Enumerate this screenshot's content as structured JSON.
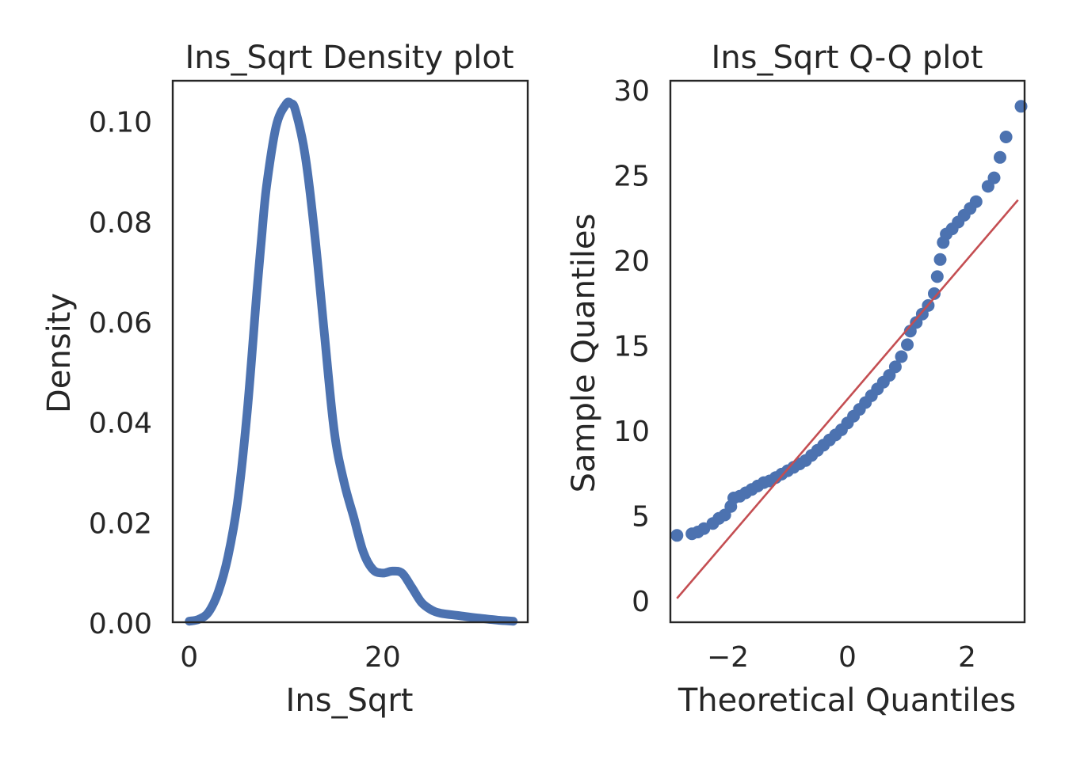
{
  "chart_data": [
    {
      "type": "line",
      "title": "Ins_Sqrt Density plot",
      "xlabel": "Ins_Sqrt",
      "ylabel": "Density",
      "xlim": [
        -1.7,
        35.0
      ],
      "ylim": [
        0.0,
        0.108
      ],
      "xticks": [
        0,
        20
      ],
      "xtick_labels": [
        "0",
        "20"
      ],
      "yticks": [
        0.0,
        0.02,
        0.04,
        0.06,
        0.08,
        0.1
      ],
      "ytick_labels": [
        "0.00",
        "0.02",
        "0.04",
        "0.06",
        "0.08",
        "0.10"
      ],
      "grid": false,
      "color": "#4c72b0",
      "x": [
        0,
        1,
        2,
        3,
        4,
        5,
        6,
        7,
        7.5,
        8,
        9,
        10,
        10.5,
        11,
        12,
        13,
        14,
        15,
        16,
        17,
        18,
        19,
        20,
        21,
        22,
        23,
        24,
        25,
        26,
        28,
        30,
        32,
        33.5
      ],
      "y": [
        0.0002,
        0.0006,
        0.002,
        0.006,
        0.013,
        0.024,
        0.042,
        0.066,
        0.077,
        0.087,
        0.099,
        0.1033,
        0.1035,
        0.102,
        0.093,
        0.077,
        0.057,
        0.038,
        0.028,
        0.021,
        0.014,
        0.0105,
        0.0098,
        0.0102,
        0.0098,
        0.007,
        0.004,
        0.0025,
        0.0018,
        0.0013,
        0.0008,
        0.0004,
        0.0002
      ]
    },
    {
      "type": "scatter",
      "title": "Ins_Sqrt Q-Q plot",
      "xlabel": "Theoretical Quantiles",
      "ylabel": "Sample Quantiles",
      "xlim": [
        -2.96,
        2.96
      ],
      "ylim": [
        -1.3,
        30.5
      ],
      "xticks": [
        -2,
        0,
        2
      ],
      "xtick_labels": [
        "−2",
        "0",
        "2"
      ],
      "yticks": [
        0,
        5,
        10,
        15,
        20,
        25,
        30
      ],
      "ytick_labels": [
        "0",
        "5",
        "10",
        "15",
        "20",
        "25",
        "30"
      ],
      "grid": false,
      "point_color": "#4c72b0",
      "line_color": "#c44e52",
      "reference_line": {
        "x": [
          -2.85,
          2.85
        ],
        "y": [
          0.1,
          23.5
        ]
      },
      "points": [
        [
          -2.85,
          3.8
        ],
        [
          -2.6,
          3.9
        ],
        [
          -2.5,
          4.0
        ],
        [
          -2.4,
          4.2
        ],
        [
          -2.25,
          4.5
        ],
        [
          -2.15,
          4.8
        ],
        [
          -2.05,
          5.0
        ],
        [
          -1.95,
          5.5
        ],
        [
          -1.9,
          6.0
        ],
        [
          -1.8,
          6.1
        ],
        [
          -1.7,
          6.3
        ],
        [
          -1.6,
          6.5
        ],
        [
          -1.5,
          6.7
        ],
        [
          -1.4,
          6.9
        ],
        [
          -1.3,
          7.0
        ],
        [
          -1.2,
          7.2
        ],
        [
          -1.1,
          7.4
        ],
        [
          -1.0,
          7.6
        ],
        [
          -0.9,
          7.8
        ],
        [
          -0.8,
          8.0
        ],
        [
          -0.7,
          8.2
        ],
        [
          -0.6,
          8.5
        ],
        [
          -0.5,
          8.8
        ],
        [
          -0.4,
          9.1
        ],
        [
          -0.3,
          9.4
        ],
        [
          -0.2,
          9.7
        ],
        [
          -0.1,
          10.0
        ],
        [
          0.0,
          10.4
        ],
        [
          0.1,
          10.8
        ],
        [
          0.2,
          11.2
        ],
        [
          0.3,
          11.6
        ],
        [
          0.4,
          12.0
        ],
        [
          0.5,
          12.4
        ],
        [
          0.6,
          12.8
        ],
        [
          0.7,
          13.2
        ],
        [
          0.8,
          13.7
        ],
        [
          0.9,
          14.3
        ],
        [
          1.0,
          15.0
        ],
        [
          1.05,
          15.8
        ],
        [
          1.15,
          16.3
        ],
        [
          1.25,
          16.8
        ],
        [
          1.35,
          17.3
        ],
        [
          1.45,
          18.0
        ],
        [
          1.5,
          19.0
        ],
        [
          1.55,
          20.0
        ],
        [
          1.6,
          21.0
        ],
        [
          1.65,
          21.5
        ],
        [
          1.75,
          21.8
        ],
        [
          1.85,
          22.2
        ],
        [
          1.95,
          22.6
        ],
        [
          2.05,
          23.0
        ],
        [
          2.15,
          23.4
        ],
        [
          2.35,
          24.3
        ],
        [
          2.45,
          24.8
        ],
        [
          2.55,
          26.0
        ],
        [
          2.65,
          27.2
        ],
        [
          2.9,
          29.0
        ]
      ]
    }
  ]
}
